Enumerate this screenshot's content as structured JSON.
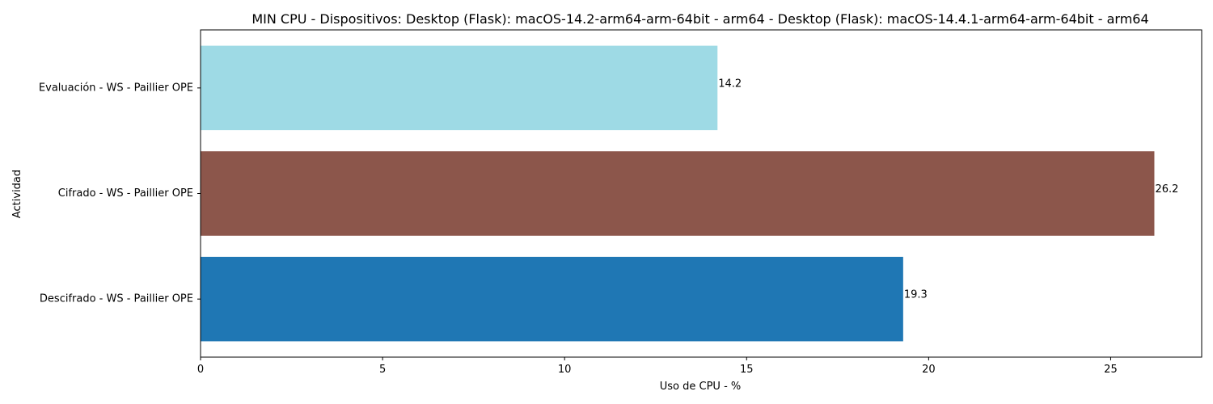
{
  "chart_data": {
    "type": "bar",
    "orientation": "horizontal",
    "title": "MIN CPU - Dispositivos: Desktop (Flask): macOS-14.2-arm64-arm-64bit - arm64 - Desktop (Flask): macOS-14.4.1-arm64-arm-64bit - arm64",
    "xlabel": "Uso de CPU - %",
    "ylabel": "Actividad",
    "categories": [
      "Evaluación - WS - Paillier OPE",
      "Cifrado - WS - Paillier OPE",
      "Descifrado - WS - Paillier OPE"
    ],
    "values": [
      14.2,
      26.2,
      19.3
    ],
    "value_labels": [
      "14.2",
      "26.2",
      "19.3"
    ],
    "colors": [
      "#9edae5",
      "#8c564b",
      "#1f77b4"
    ],
    "xlim": [
      0,
      27.5
    ],
    "xticks": [
      0,
      5,
      10,
      15,
      20,
      25
    ],
    "grid": false,
    "legend": "none"
  }
}
